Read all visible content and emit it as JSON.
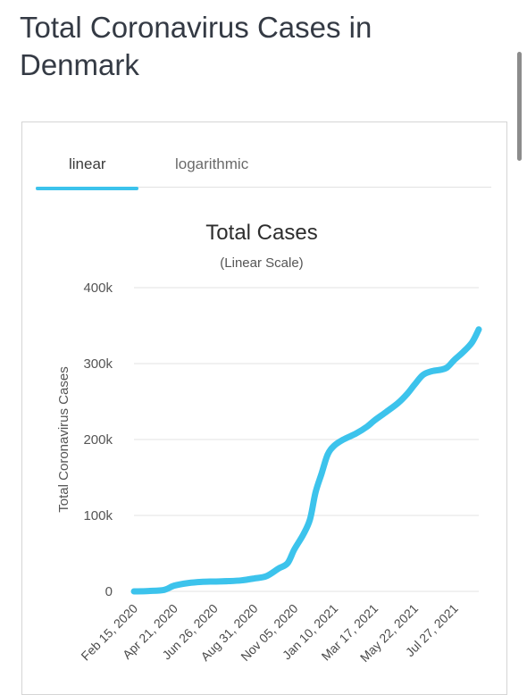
{
  "page": {
    "title": "Total Coronavirus Cases in Denmark"
  },
  "tabs": [
    {
      "label": "linear",
      "active": true
    },
    {
      "label": "logarithmic",
      "active": false
    }
  ],
  "colors": {
    "accent": "#3cc3ec",
    "line": "#3cc3ec"
  },
  "chart_data": {
    "type": "line",
    "title": "Total Cases",
    "subtitle": "(Linear Scale)",
    "ylabel": "Total Coronavirus Cases",
    "xlabel": "",
    "ylim": [
      0,
      400000
    ],
    "yticks": [
      {
        "value": 0,
        "label": "0"
      },
      {
        "value": 100000,
        "label": "100k"
      },
      {
        "value": 200000,
        "label": "200k"
      },
      {
        "value": 300000,
        "label": "300k"
      },
      {
        "value": 400000,
        "label": "400k"
      }
    ],
    "xtick_labels": [
      "Feb 15, 2020",
      "Apr 21, 2020",
      "Jun 26, 2020",
      "Aug 31, 2020",
      "Nov 05, 2020",
      "Jan 10, 2021",
      "Mar 17, 2021",
      "May 22, 2021",
      "Jul 27, 2021"
    ],
    "grid": true,
    "series": [
      {
        "x": [
          "Feb 15, 2020",
          "Mar 10, 2020",
          "Apr 05, 2020",
          "Apr 21, 2020",
          "May 15, 2020",
          "Jun 05, 2020",
          "Jun 26, 2020",
          "Jul 20, 2020",
          "Aug 10, 2020",
          "Aug 31, 2020",
          "Sep 20, 2020",
          "Oct 10, 2020",
          "Oct 25, 2020",
          "Nov 05, 2020",
          "Nov 20, 2020",
          "Dec 01, 2020",
          "Dec 10, 2020",
          "Dec 20, 2020",
          "Dec 30, 2020",
          "Jan 10, 2021",
          "Jan 25, 2021",
          "Feb 15, 2021",
          "Mar 05, 2021",
          "Mar 17, 2021",
          "Apr 05, 2021",
          "Apr 25, 2021",
          "May 10, 2021",
          "May 22, 2021",
          "Jun 05, 2021",
          "Jun 20, 2021",
          "Jul 05, 2021",
          "Jul 15, 2021",
          "Jul 27, 2021",
          "Aug 10, 2021",
          "Aug 25, 2021",
          "Sep 05, 2021"
        ],
        "values": [
          0,
          500,
          2000,
          7500,
          11000,
          12500,
          13000,
          13500,
          14500,
          17000,
          20000,
          30000,
          37000,
          55000,
          75000,
          95000,
          130000,
          155000,
          180000,
          192000,
          200000,
          208000,
          217000,
          225000,
          236000,
          248000,
          260000,
          272000,
          285000,
          290000,
          292000,
          295000,
          305000,
          315000,
          328000,
          345000
        ]
      }
    ]
  }
}
